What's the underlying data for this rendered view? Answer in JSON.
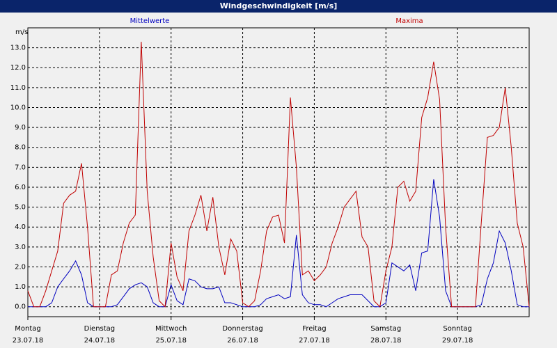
{
  "chart_data": {
    "type": "line",
    "title": "Windgeschwindigkeit [m/s]",
    "ylabel": "m/s",
    "x": [
      0,
      2,
      4,
      6,
      8,
      10,
      12,
      14,
      16,
      18,
      20,
      22,
      24,
      26,
      28,
      30,
      32,
      34,
      36,
      38,
      40,
      42,
      44,
      46,
      48,
      50,
      52,
      54,
      56,
      58,
      60,
      62,
      64,
      66,
      68,
      70,
      72,
      74,
      76,
      78,
      80,
      82,
      84,
      86,
      88,
      90,
      92,
      94,
      96,
      98,
      100,
      102,
      104,
      106,
      108,
      110,
      112,
      114,
      116,
      118,
      120,
      122,
      124,
      126,
      128,
      130,
      132,
      134,
      136,
      138,
      140,
      142,
      144,
      146,
      148,
      150,
      152,
      154,
      156,
      158,
      160,
      162,
      164,
      166,
      168
    ],
    "xlim": [
      0,
      168
    ],
    "xticks": [
      {
        "value": 0,
        "label": "Montag",
        "date": "23.07.18"
      },
      {
        "value": 24,
        "label": "Dienstag",
        "date": "24.07.18"
      },
      {
        "value": 48,
        "label": "Mittwoch",
        "date": "25.07.18"
      },
      {
        "value": 72,
        "label": "Donnerstag",
        "date": "26.07.18"
      },
      {
        "value": 96,
        "label": "Freitag",
        "date": "27.07.18"
      },
      {
        "value": 120,
        "label": "Samstag",
        "date": "28.07.18"
      },
      {
        "value": 144,
        "label": "Sonntag",
        "date": "29.07.18"
      }
    ],
    "ylim": [
      -0.5,
      14
    ],
    "yticks": [
      {
        "value": 0,
        "label": "0.0"
      },
      {
        "value": 1,
        "label": "1.0"
      },
      {
        "value": 2,
        "label": "2.0"
      },
      {
        "value": 3,
        "label": "3.0"
      },
      {
        "value": 4,
        "label": "4.0"
      },
      {
        "value": 5,
        "label": "5.0"
      },
      {
        "value": 6,
        "label": "6.0"
      },
      {
        "value": 7,
        "label": "7.0"
      },
      {
        "value": 8,
        "label": "8.0"
      },
      {
        "value": 9,
        "label": "9.0"
      },
      {
        "value": 10,
        "label": "10.0"
      },
      {
        "value": 11,
        "label": "11.0"
      },
      {
        "value": 12,
        "label": "12.0"
      },
      {
        "value": 13,
        "label": "13.0"
      }
    ],
    "grid": true,
    "series": [
      {
        "name": "Mittelwerte",
        "color": "#0000c0",
        "values": [
          0,
          0,
          0,
          0,
          0.2,
          1.0,
          1.4,
          1.8,
          2.3,
          1.6,
          0.2,
          0,
          0,
          0,
          0,
          0.1,
          0.5,
          0.9,
          1.1,
          1.2,
          1.0,
          0.2,
          0,
          0,
          1.1,
          0.3,
          0.1,
          1.4,
          1.3,
          1.0,
          0.9,
          0.9,
          1.0,
          0.2,
          0.2,
          0.1,
          0,
          0,
          0,
          0.1,
          0.4,
          0.5,
          0.6,
          0.4,
          0.5,
          3.6,
          0.6,
          0.2,
          0.1,
          0.1,
          0,
          0.2,
          0.4,
          0.5,
          0.6,
          0.6,
          0.6,
          0.3,
          0,
          0,
          0.2,
          2.2,
          2.0,
          1.8,
          2.1,
          0.8,
          2.7,
          2.8,
          6.4,
          4.5,
          0.8,
          0,
          0,
          0,
          0,
          0,
          0.1,
          1.4,
          2.2,
          3.8,
          3.2,
          1.8,
          0.1,
          0,
          0
        ]
      },
      {
        "name": "Maxima",
        "color": "#c00000",
        "values": [
          0.8,
          0,
          0,
          0.8,
          1.8,
          2.8,
          5.2,
          5.6,
          5.8,
          7.2,
          4.0,
          0,
          0,
          0,
          1.6,
          1.8,
          3.2,
          4.2,
          4.6,
          13.3,
          5.8,
          2.5,
          0.3,
          0,
          3.2,
          1.5,
          0.8,
          3.8,
          4.6,
          5.6,
          3.8,
          5.5,
          3.0,
          1.6,
          3.4,
          2.8,
          0.2,
          0,
          0.3,
          1.8,
          3.8,
          4.5,
          4.6,
          3.2,
          10.5,
          7.0,
          1.6,
          1.8,
          1.3,
          1.6,
          2.0,
          3.2,
          4.0,
          5.0,
          5.4,
          5.8,
          3.5,
          3.0,
          0.3,
          0,
          1.8,
          3.0,
          6.0,
          6.3,
          5.3,
          5.8,
          9.5,
          10.5,
          12.3,
          10.4,
          4.0,
          0,
          0,
          0,
          0,
          0,
          4.3,
          8.5,
          8.6,
          9.0,
          11.0,
          8.0,
          4.2,
          3.0,
          0
        ]
      }
    ]
  }
}
